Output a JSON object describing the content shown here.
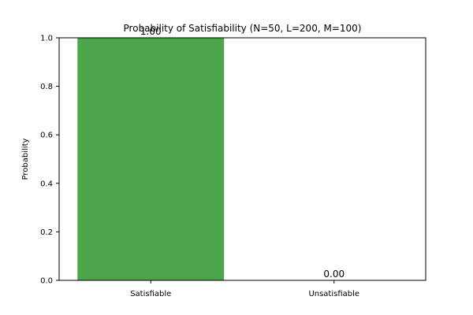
{
  "chart_data": {
    "type": "bar",
    "title": "Probability of Satisfiability (N=50, L=200, M=100)",
    "xlabel": "",
    "ylabel": "Probability",
    "categories": [
      "Satisfiable",
      "Unsatisfiable"
    ],
    "values": [
      1.0,
      0.0
    ],
    "value_labels": [
      "1.00",
      "0.00"
    ],
    "ylim": [
      0,
      1.0
    ],
    "yticks": [
      0.0,
      0.2,
      0.4,
      0.6,
      0.8,
      1.0
    ],
    "ytick_labels": [
      "0.0",
      "0.2",
      "0.4",
      "0.6",
      "0.8",
      "1.0"
    ],
    "bar_color": "#4ca64c",
    "grid": false,
    "legend": "none"
  }
}
